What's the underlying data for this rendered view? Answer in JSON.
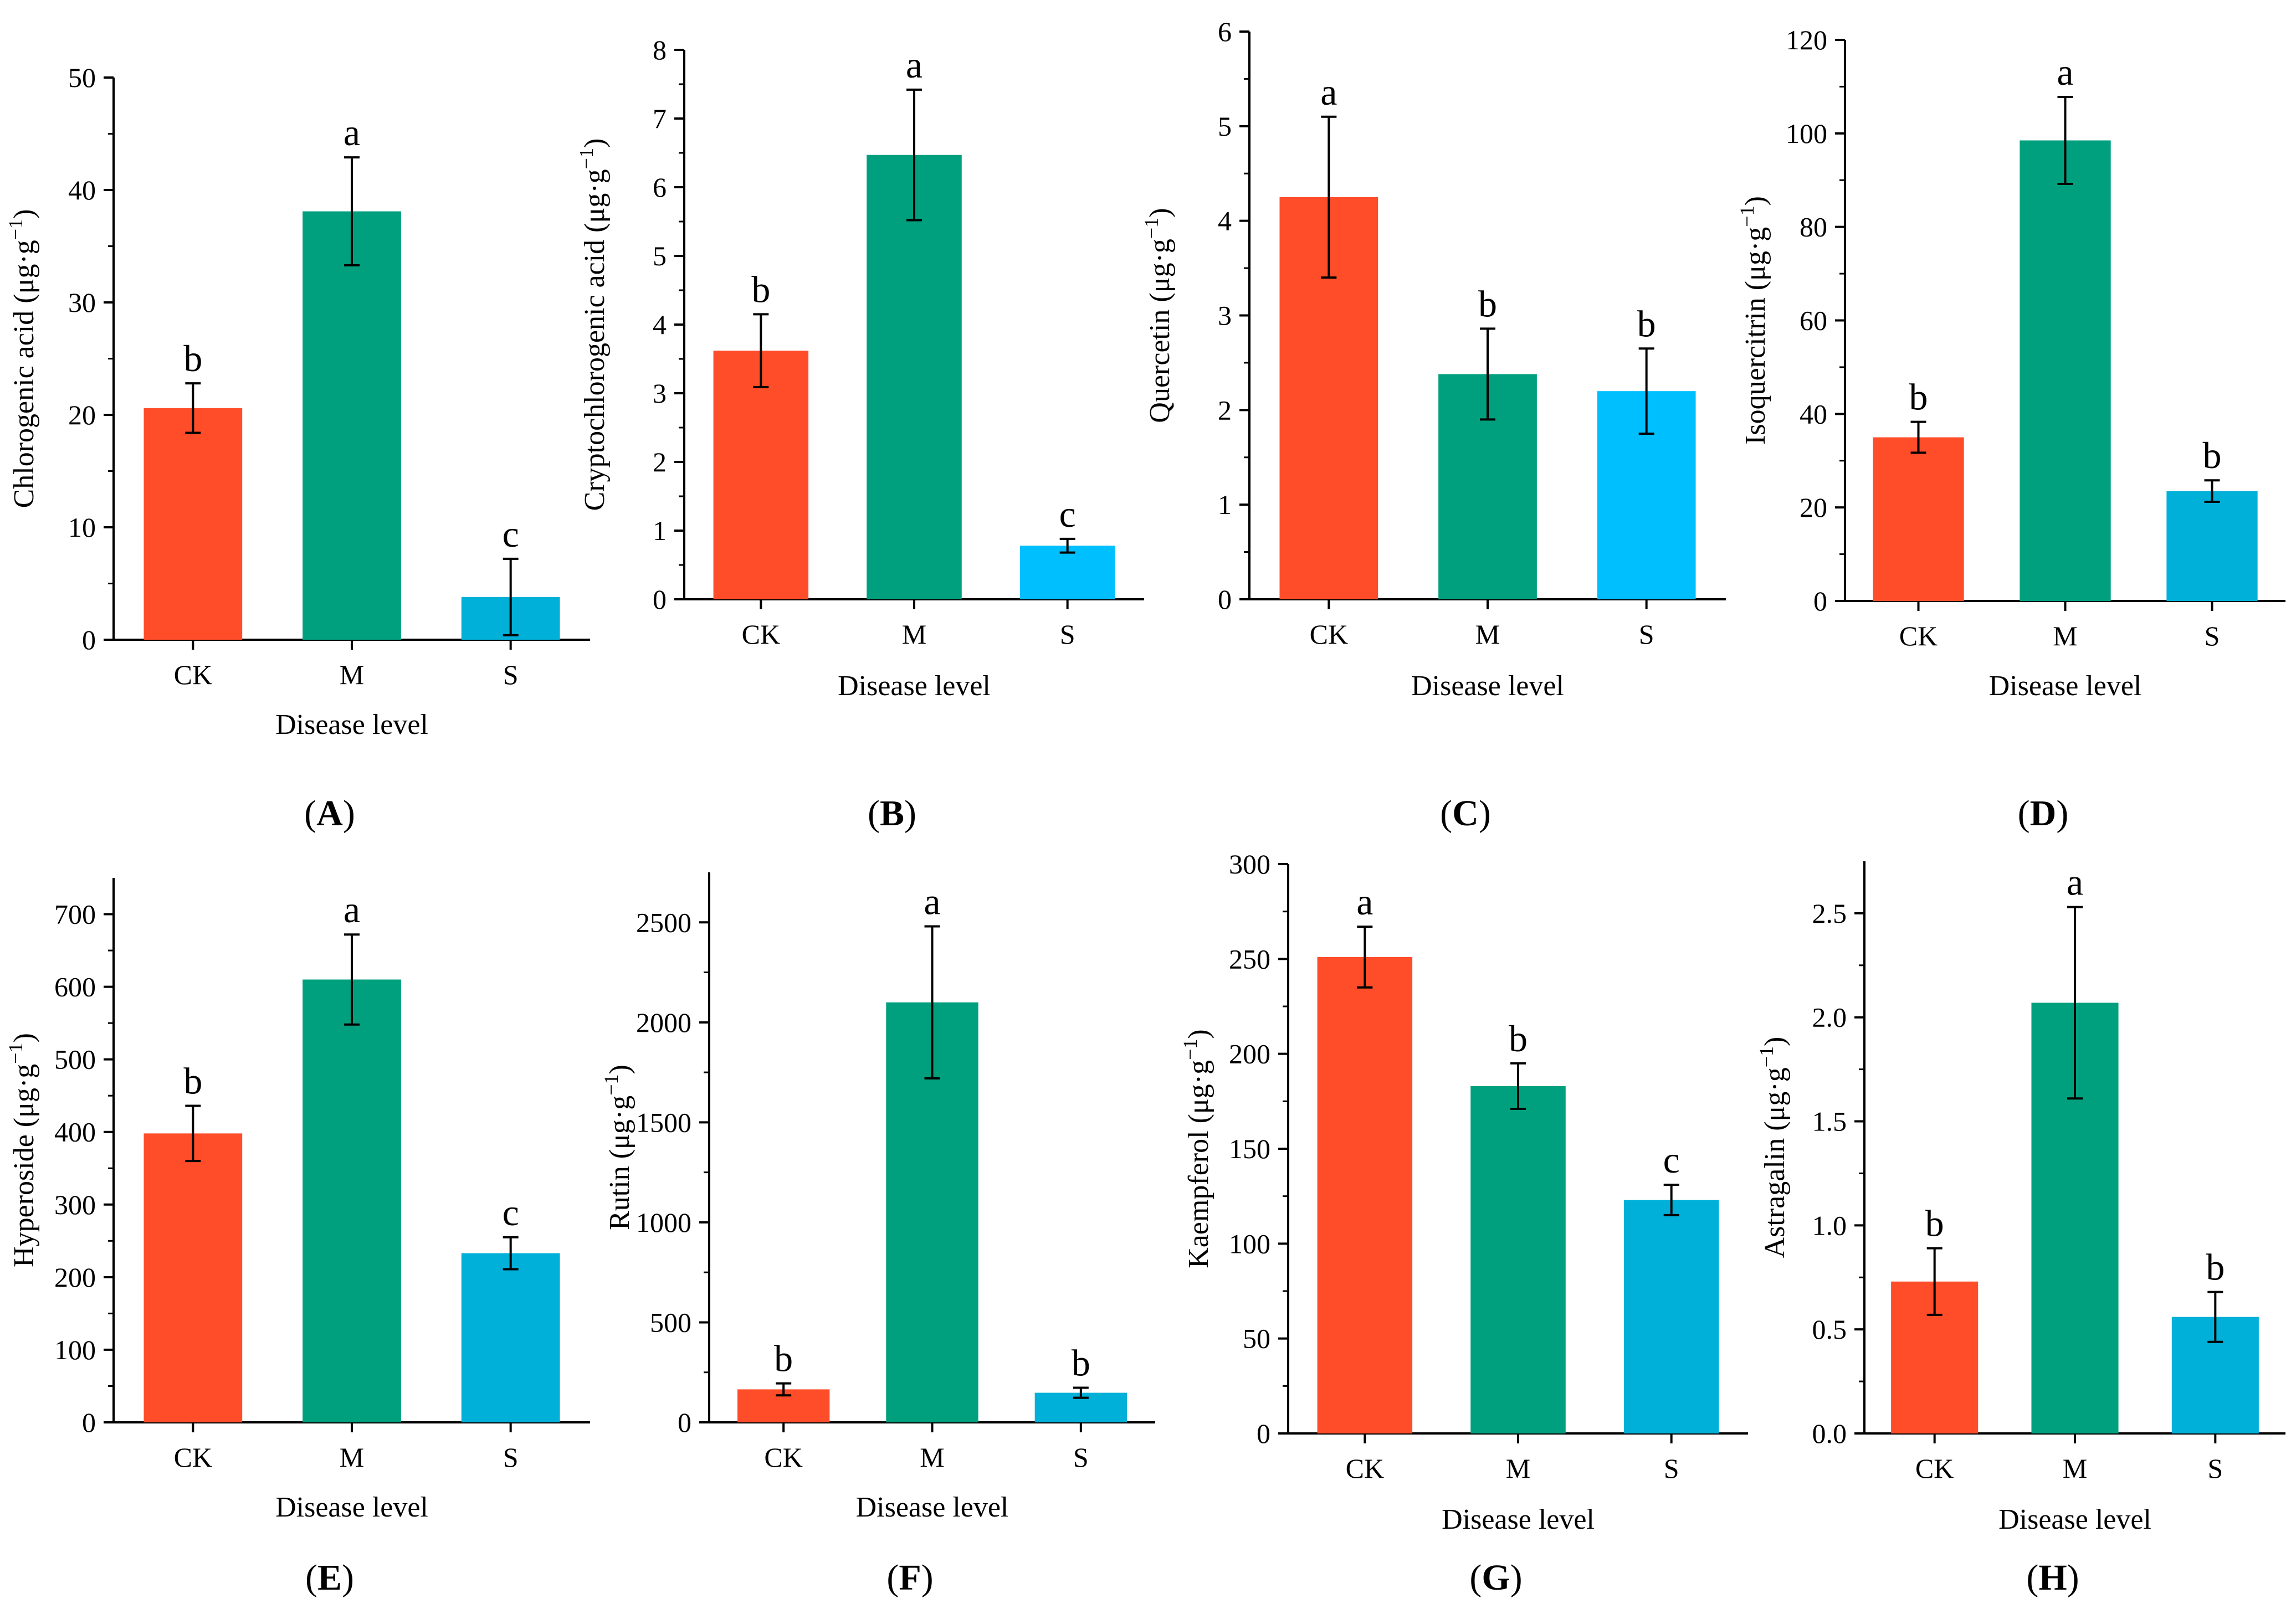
{
  "figure": {
    "x_title": "Disease level",
    "unit": "(μg·g",
    "unit_exp": "−1",
    "unit_close": ")"
  },
  "chart_data": [
    {
      "type": "bar",
      "panel": "A",
      "ylabel": "Chlorogenic acid",
      "xlabel": "Disease level",
      "categories": [
        "CK",
        "M",
        "S"
      ],
      "values": [
        20.6,
        38.1,
        3.8
      ],
      "errors": [
        2.2,
        4.8,
        3.4
      ],
      "letters": [
        "b",
        "a",
        "c"
      ],
      "colors": [
        "#ff4d29",
        "#00a07e",
        "#00b0d8"
      ],
      "ylim": [
        0,
        50
      ],
      "yticks": [
        0,
        10,
        20,
        30,
        40,
        50
      ]
    },
    {
      "type": "bar",
      "panel": "B",
      "ylabel": "Cryptochlorogenic acid",
      "xlabel": "Disease level",
      "categories": [
        "CK",
        "M",
        "S"
      ],
      "values": [
        3.62,
        6.47,
        0.78
      ],
      "errors": [
        0.53,
        0.95,
        0.1
      ],
      "letters": [
        "b",
        "a",
        "c"
      ],
      "colors": [
        "#ff4d29",
        "#00a07e",
        "#00bfff"
      ],
      "ylim": [
        0,
        8
      ],
      "yticks": [
        0,
        1,
        2,
        3,
        4,
        5,
        6,
        7,
        8
      ]
    },
    {
      "type": "bar",
      "panel": "C",
      "ylabel": "Quercetin",
      "xlabel": "Disease level",
      "categories": [
        "CK",
        "M",
        "S"
      ],
      "values": [
        4.25,
        2.38,
        2.2
      ],
      "errors": [
        0.85,
        0.48,
        0.45
      ],
      "letters": [
        "a",
        "b",
        "b"
      ],
      "colors": [
        "#ff4d29",
        "#00a07e",
        "#00bfff"
      ],
      "ylim": [
        0,
        6
      ],
      "yticks": [
        0,
        1,
        2,
        3,
        4,
        5,
        6
      ]
    },
    {
      "type": "bar",
      "panel": "D",
      "ylabel": "Isoquercitrin",
      "xlabel": "Disease level",
      "categories": [
        "CK",
        "M",
        "S"
      ],
      "values": [
        35,
        98.5,
        23.5
      ],
      "errors": [
        3.3,
        9.3,
        2.3
      ],
      "letters": [
        "b",
        "a",
        "b"
      ],
      "colors": [
        "#ff4d29",
        "#00a07e",
        "#00b0d8"
      ],
      "ylim": [
        0,
        120
      ],
      "yticks": [
        0,
        20,
        40,
        60,
        80,
        100,
        120
      ]
    },
    {
      "type": "bar",
      "panel": "E",
      "ylabel": "Hyperoside",
      "xlabel": "Disease level",
      "categories": [
        "CK",
        "M",
        "S"
      ],
      "values": [
        398,
        610,
        233
      ],
      "errors": [
        38,
        62,
        22
      ],
      "letters": [
        "b",
        "a",
        "c"
      ],
      "colors": [
        "#ff4d29",
        "#00a07e",
        "#00b0d8"
      ],
      "ylim": [
        0,
        750
      ],
      "yticks": [
        0,
        100,
        200,
        300,
        400,
        500,
        600,
        700
      ]
    },
    {
      "type": "bar",
      "panel": "F",
      "ylabel": "Rutin",
      "xlabel": "Disease level",
      "categories": [
        "CK",
        "M",
        "S"
      ],
      "values": [
        165,
        2100,
        148
      ],
      "errors": [
        30,
        380,
        25
      ],
      "letters": [
        "b",
        "a",
        "b"
      ],
      "colors": [
        "#ff4d29",
        "#00a07e",
        "#00b0d8"
      ],
      "ylim": [
        0,
        2750
      ],
      "yticks": [
        0,
        500,
        1000,
        1500,
        2000,
        2500
      ]
    },
    {
      "type": "bar",
      "panel": "G",
      "ylabel": "Kaempferol",
      "xlabel": "Disease level",
      "categories": [
        "CK",
        "M",
        "S"
      ],
      "values": [
        251,
        183,
        123
      ],
      "errors": [
        16,
        12,
        8
      ],
      "letters": [
        "a",
        "b",
        "c"
      ],
      "colors": [
        "#ff4d29",
        "#00a07e",
        "#00b0d8"
      ],
      "ylim": [
        0,
        300
      ],
      "yticks": [
        0,
        50,
        100,
        150,
        200,
        250,
        300
      ]
    },
    {
      "type": "bar",
      "panel": "H",
      "ylabel": "Astragalin",
      "xlabel": "Disease level",
      "categories": [
        "CK",
        "M",
        "S"
      ],
      "values": [
        0.73,
        2.07,
        0.56
      ],
      "errors": [
        0.16,
        0.46,
        0.12
      ],
      "letters": [
        "b",
        "a",
        "b"
      ],
      "colors": [
        "#ff4d29",
        "#00a07e",
        "#00b0d8"
      ],
      "ylim": [
        0,
        2.75
      ],
      "yticks": [
        0,
        0.5,
        1.0,
        1.5,
        2.0,
        2.5
      ],
      "ytick_labels": [
        "0.0",
        "0.5",
        "1.0",
        "1.5",
        "2.0",
        "2.5"
      ]
    }
  ]
}
